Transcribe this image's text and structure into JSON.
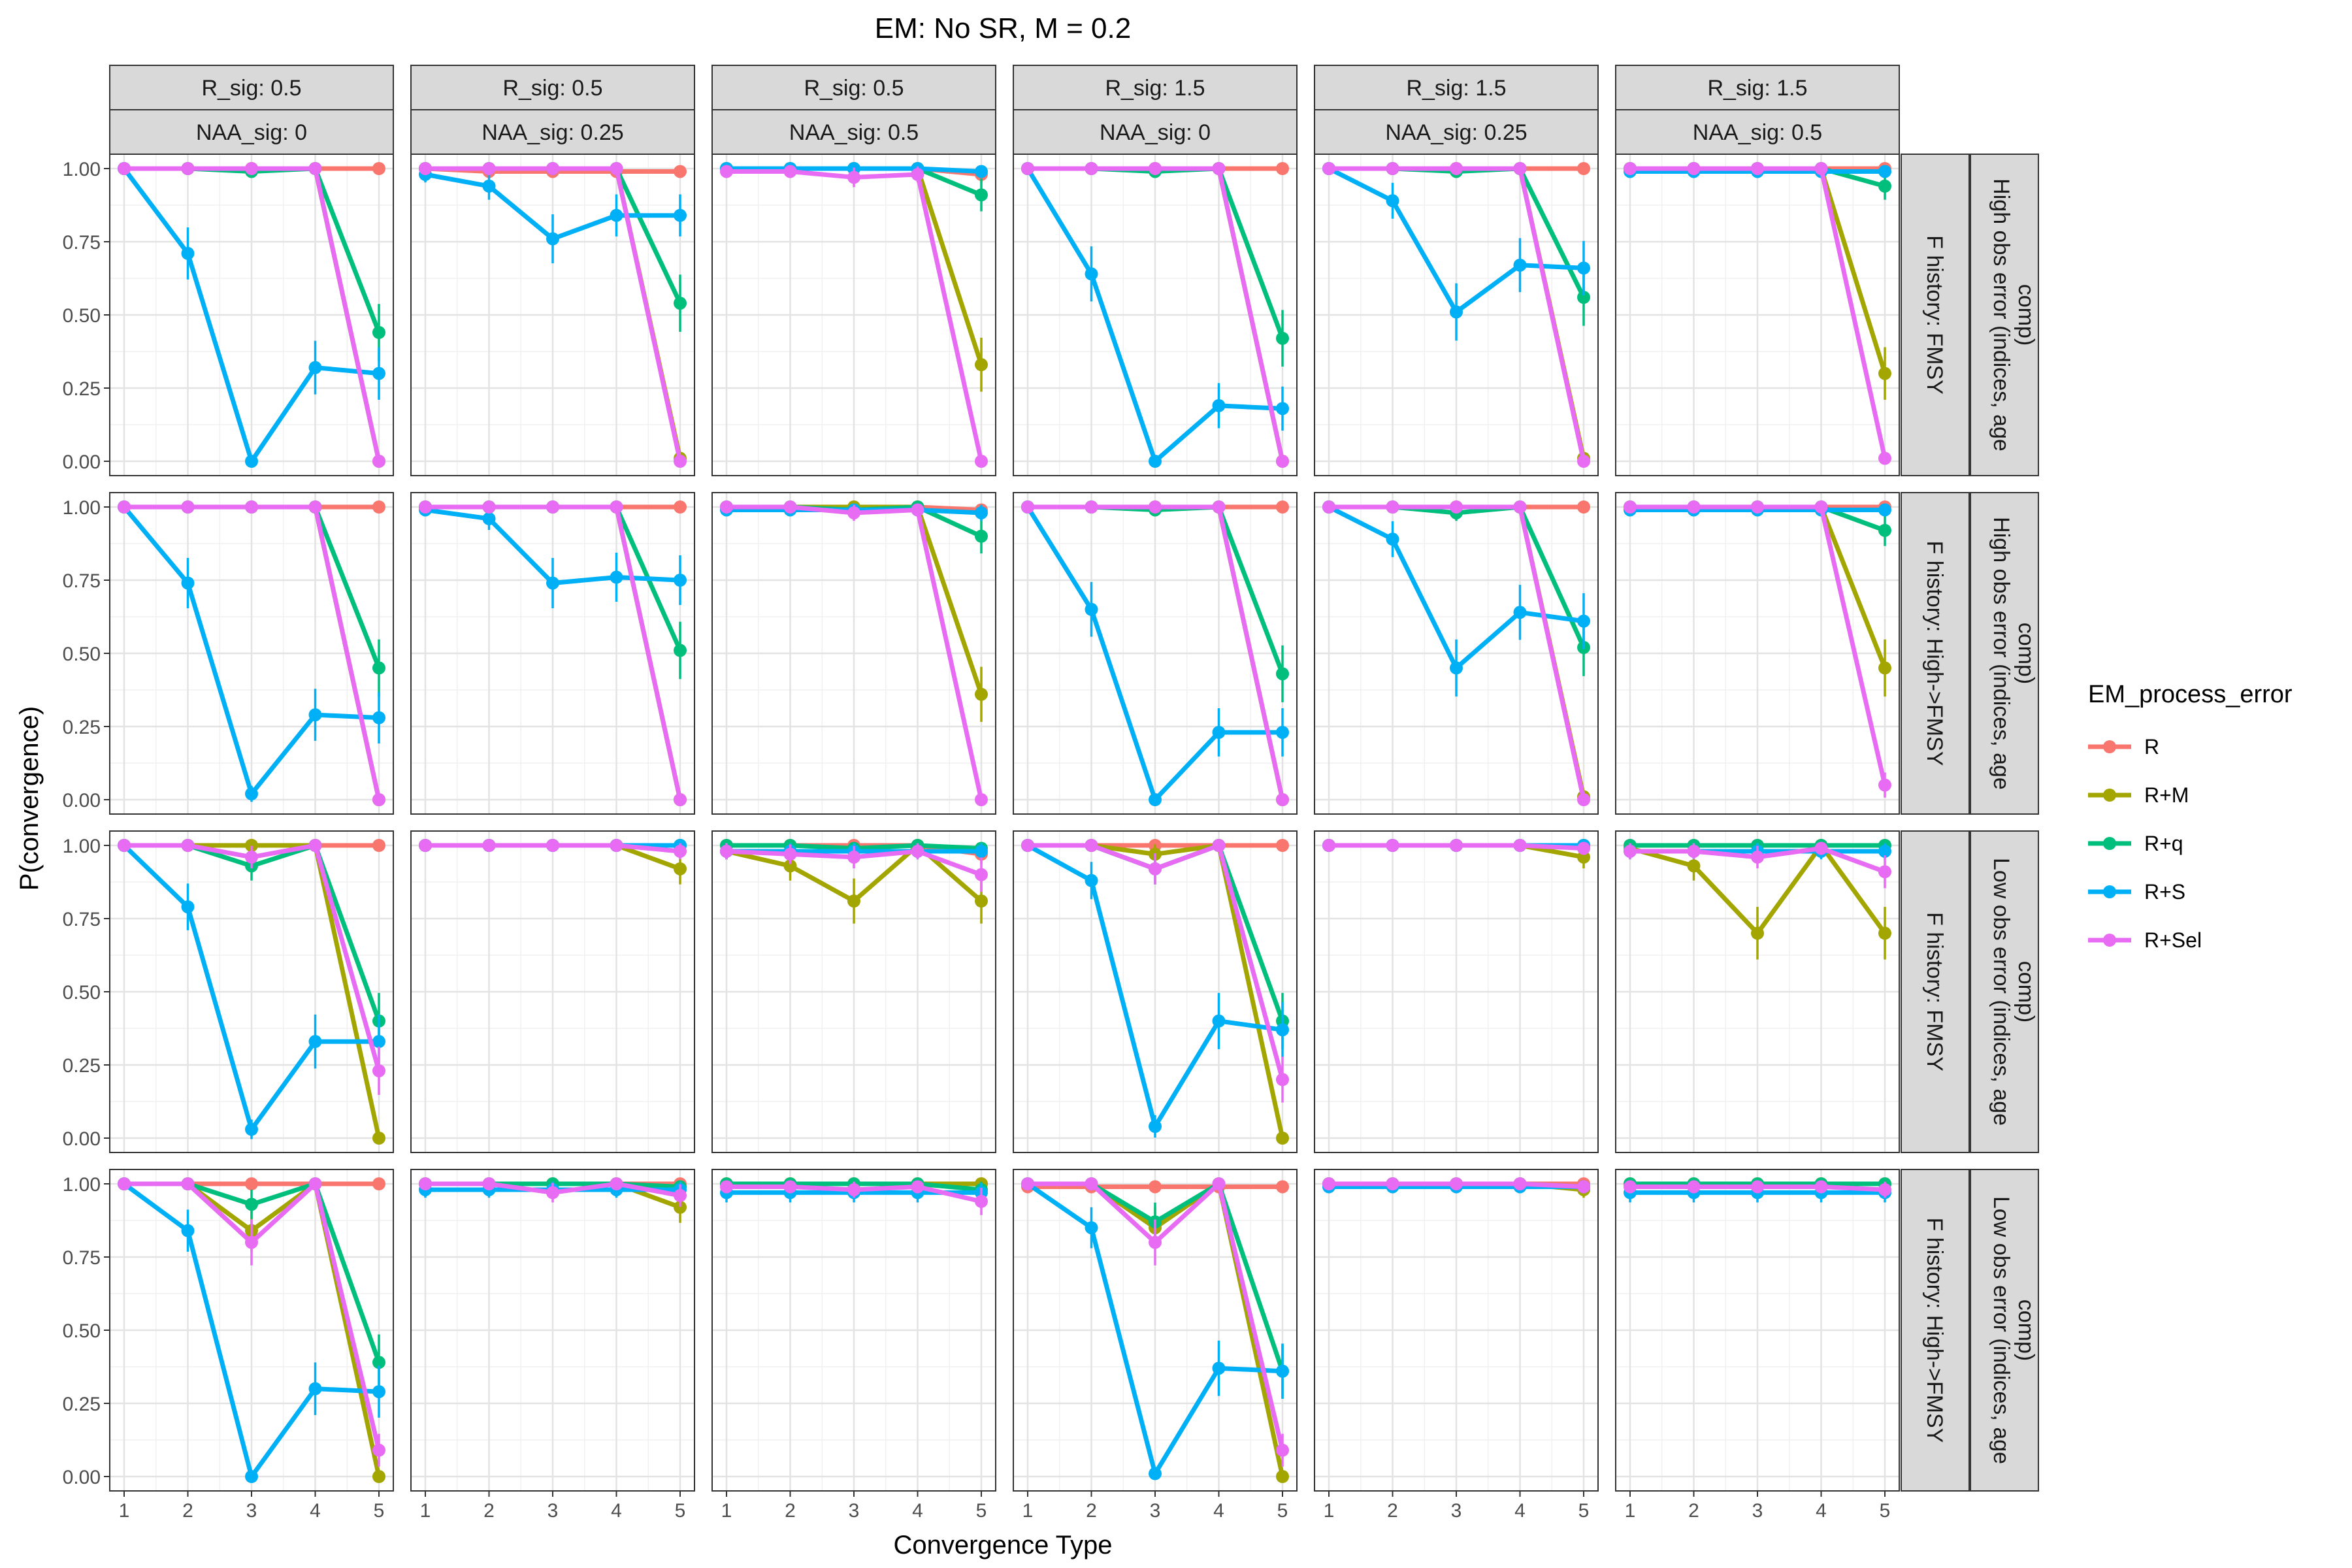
{
  "chart_data": {
    "type": "line",
    "title": "EM: No SR, M = 0.2",
    "xlabel": "Convergence Type",
    "ylabel": "P(convergence)",
    "x": [
      1,
      2,
      3,
      4,
      5
    ],
    "x_ticks": [
      "1",
      "2",
      "3",
      "4",
      "5"
    ],
    "ylim": [
      0,
      1
    ],
    "y_ticks": [
      "0.00",
      "0.25",
      "0.50",
      "0.75",
      "1.00"
    ],
    "grid": true,
    "legend": {
      "title": "EM_process_error",
      "placement": "right",
      "entries": [
        "R",
        "R+M",
        "R+q",
        "R+S",
        "R+Sel"
      ]
    },
    "colors": {
      "R": "#F8766D",
      "R+M": "#A3A500",
      "R+q": "#00BF7D",
      "R+S": "#00B0F6",
      "R+Sel": "#E76BF3"
    },
    "columns": [
      {
        "top": "R_sig: 0.5",
        "bottom": "NAA_sig: 0"
      },
      {
        "top": "R_sig: 0.5",
        "bottom": "NAA_sig: 0.25"
      },
      {
        "top": "R_sig: 0.5",
        "bottom": "NAA_sig: 0.5"
      },
      {
        "top": "R_sig: 1.5",
        "bottom": "NAA_sig: 0"
      },
      {
        "top": "R_sig: 1.5",
        "bottom": "NAA_sig: 0.25"
      },
      {
        "top": "R_sig: 1.5",
        "bottom": "NAA_sig: 0.5"
      }
    ],
    "rows": [
      {
        "inner": "F history: FMSY",
        "outer": [
          "High obs error (indices, age",
          "comp)"
        ]
      },
      {
        "inner": "F history: High->FMSY",
        "outer": [
          "High obs error (indices, age",
          "comp)"
        ]
      },
      {
        "inner": "F history: FMSY",
        "outer": [
          "Low obs error (indices, age",
          "comp)"
        ]
      },
      {
        "inner": "F history: High->FMSY",
        "outer": [
          "Low obs error (indices, age",
          "comp)"
        ]
      }
    ],
    "panels": [
      [
        {
          "R": [
            1,
            1,
            1,
            1,
            1
          ],
          "R+M": [
            1,
            1,
            1,
            1,
            0
          ],
          "R+q": [
            1,
            1,
            0.99,
            1,
            0.44
          ],
          "R+S": [
            1,
            0.71,
            0,
            0.32,
            0.3
          ],
          "R+Sel": [
            1,
            1,
            1,
            1,
            0
          ]
        },
        {
          "R": [
            1,
            0.99,
            0.99,
            0.99,
            0.99
          ],
          "R+M": [
            1,
            1,
            1,
            1,
            0.01
          ],
          "R+q": [
            1,
            1,
            1,
            1,
            0.54
          ],
          "R+S": [
            0.98,
            0.94,
            0.76,
            0.84,
            0.84
          ],
          "R+Sel": [
            1,
            1,
            1,
            1,
            0
          ]
        },
        {
          "R": [
            1,
            1,
            1,
            1,
            0.98
          ],
          "R+M": [
            1,
            1,
            1,
            1,
            0.33
          ],
          "R+q": [
            1,
            1,
            1,
            1,
            0.91
          ],
          "R+S": [
            1,
            1,
            1,
            1,
            0.99
          ],
          "R+Sel": [
            0.99,
            0.99,
            0.97,
            0.98,
            0
          ]
        },
        {
          "R": [
            1,
            1,
            1,
            1,
            1
          ],
          "R+M": [
            1,
            1,
            1,
            1,
            0
          ],
          "R+q": [
            1,
            1,
            0.99,
            1,
            0.42
          ],
          "R+S": [
            1,
            0.64,
            0,
            0.19,
            0.18
          ],
          "R+Sel": [
            1,
            1,
            1,
            1,
            0
          ]
        },
        {
          "R": [
            1,
            1,
            1,
            1,
            1
          ],
          "R+M": [
            1,
            1,
            1,
            1,
            0.01
          ],
          "R+q": [
            1,
            1,
            0.99,
            1,
            0.56
          ],
          "R+S": [
            1,
            0.89,
            0.51,
            0.67,
            0.66
          ],
          "R+Sel": [
            1,
            1,
            1,
            1,
            0
          ]
        },
        {
          "R": [
            1,
            1,
            1,
            1,
            1
          ],
          "R+M": [
            1,
            1,
            1,
            1,
            0.3
          ],
          "R+q": [
            1,
            1,
            1,
            1,
            0.94
          ],
          "R+S": [
            0.99,
            0.99,
            0.99,
            0.99,
            0.99
          ],
          "R+Sel": [
            1,
            1,
            1,
            1,
            0.01
          ]
        }
      ],
      [
        {
          "R": [
            1,
            1,
            1,
            1,
            1
          ],
          "R+M": [
            1,
            1,
            1,
            1,
            0
          ],
          "R+q": [
            1,
            1,
            1,
            1,
            0.45
          ],
          "R+S": [
            1,
            0.74,
            0.02,
            0.29,
            0.28
          ],
          "R+Sel": [
            1,
            1,
            1,
            1,
            0
          ]
        },
        {
          "R": [
            1,
            1,
            1,
            1,
            1
          ],
          "R+M": [
            1,
            1,
            1,
            1,
            0
          ],
          "R+q": [
            1,
            1,
            1,
            1,
            0.51
          ],
          "R+S": [
            0.99,
            0.96,
            0.74,
            0.76,
            0.75
          ],
          "R+Sel": [
            1,
            1,
            1,
            1,
            0
          ]
        },
        {
          "R": [
            1,
            1,
            1,
            1,
            0.99
          ],
          "R+M": [
            1,
            1,
            1,
            1,
            0.36
          ],
          "R+q": [
            1,
            1,
            0.99,
            1,
            0.9
          ],
          "R+S": [
            0.99,
            0.99,
            0.99,
            0.99,
            0.98
          ],
          "R+Sel": [
            1,
            1,
            0.98,
            0.99,
            0
          ]
        },
        {
          "R": [
            1,
            1,
            1,
            1,
            1
          ],
          "R+M": [
            1,
            1,
            1,
            1,
            0
          ],
          "R+q": [
            1,
            1,
            0.99,
            1,
            0.43
          ],
          "R+S": [
            1,
            0.65,
            0,
            0.23,
            0.23
          ],
          "R+Sel": [
            1,
            1,
            1,
            1,
            0
          ]
        },
        {
          "R": [
            1,
            1,
            1,
            1,
            1
          ],
          "R+M": [
            1,
            1,
            1,
            1,
            0.01
          ],
          "R+q": [
            1,
            1,
            0.98,
            1,
            0.52
          ],
          "R+S": [
            1,
            0.89,
            0.45,
            0.64,
            0.61
          ],
          "R+Sel": [
            1,
            1,
            1,
            1,
            0
          ]
        },
        {
          "R": [
            1,
            1,
            1,
            1,
            1
          ],
          "R+M": [
            1,
            1,
            1,
            1,
            0.45
          ],
          "R+q": [
            1,
            1,
            1,
            1,
            0.92
          ],
          "R+S": [
            0.99,
            0.99,
            0.99,
            0.99,
            0.99
          ],
          "R+Sel": [
            1,
            1,
            1,
            1,
            0.05
          ]
        }
      ],
      [
        {
          "R": [
            1,
            1,
            1,
            1,
            1
          ],
          "R+M": [
            1,
            1,
            1,
            1,
            0
          ],
          "R+q": [
            1,
            1,
            0.93,
            1,
            0.4
          ],
          "R+S": [
            1,
            0.79,
            0.03,
            0.33,
            0.33
          ],
          "R+Sel": [
            1,
            1,
            0.96,
            1,
            0.23
          ]
        },
        {
          "R": [
            1,
            1,
            1,
            1,
            1
          ],
          "R+M": [
            1,
            1,
            1,
            1,
            0.92
          ],
          "R+q": [
            1,
            1,
            1,
            1,
            1
          ],
          "R+S": [
            1,
            1,
            1,
            1,
            1
          ],
          "R+Sel": [
            1,
            1,
            1,
            1,
            0.98
          ]
        },
        {
          "R": [
            1,
            1,
            1,
            1,
            0.97
          ],
          "R+M": [
            0.98,
            0.93,
            0.81,
            1,
            0.81
          ],
          "R+q": [
            1,
            1,
            0.99,
            1,
            0.99
          ],
          "R+S": [
            0.98,
            0.98,
            0.98,
            0.98,
            0.98
          ],
          "R+Sel": [
            0.98,
            0.97,
            0.96,
            0.98,
            0.9
          ]
        },
        {
          "R": [
            1,
            1,
            1,
            1,
            1
          ],
          "R+M": [
            1,
            1,
            0.97,
            1,
            0
          ],
          "R+q": [
            1,
            1,
            0.92,
            1,
            0.4
          ],
          "R+S": [
            1,
            0.88,
            0.04,
            0.4,
            0.37
          ],
          "R+Sel": [
            1,
            1,
            0.92,
            1,
            0.2
          ]
        },
        {
          "R": [
            1,
            1,
            1,
            1,
            1
          ],
          "R+M": [
            1,
            1,
            1,
            1,
            0.96
          ],
          "R+q": [
            1,
            1,
            1,
            1,
            1
          ],
          "R+S": [
            1,
            1,
            1,
            1,
            1
          ],
          "R+Sel": [
            1,
            1,
            1,
            1,
            0.99
          ]
        },
        {
          "R": [
            1,
            1,
            1,
            1,
            1
          ],
          "R+M": [
            0.99,
            0.93,
            0.7,
            1,
            0.7
          ],
          "R+q": [
            1,
            1,
            1,
            1,
            1
          ],
          "R+S": [
            0.98,
            0.98,
            0.98,
            0.98,
            0.98
          ],
          "R+Sel": [
            0.98,
            0.98,
            0.96,
            0.99,
            0.91
          ]
        }
      ],
      [
        {
          "R": [
            1,
            1,
            1,
            1,
            1
          ],
          "R+M": [
            1,
            1,
            0.84,
            1,
            0
          ],
          "R+q": [
            1,
            1,
            0.93,
            1,
            0.39
          ],
          "R+S": [
            1,
            0.84,
            0,
            0.3,
            0.29
          ],
          "R+Sel": [
            1,
            1,
            0.8,
            1,
            0.09
          ]
        },
        {
          "R": [
            1,
            1,
            1,
            1,
            1
          ],
          "R+M": [
            1,
            1,
            1,
            1,
            0.92
          ],
          "R+q": [
            1,
            1,
            1,
            1,
            0.99
          ],
          "R+S": [
            0.98,
            0.98,
            0.98,
            0.98,
            0.98
          ],
          "R+Sel": [
            1,
            1,
            0.97,
            1,
            0.96
          ]
        },
        {
          "R": [
            1,
            1,
            1,
            1,
            1
          ],
          "R+M": [
            1,
            1,
            1,
            1,
            1
          ],
          "R+q": [
            1,
            1,
            1,
            1,
            0.98
          ],
          "R+S": [
            0.97,
            0.97,
            0.97,
            0.97,
            0.97
          ],
          "R+Sel": [
            0.99,
            0.99,
            0.98,
            0.99,
            0.94
          ]
        },
        {
          "R": [
            0.99,
            0.99,
            0.99,
            0.99,
            0.99
          ],
          "R+M": [
            1,
            1,
            0.85,
            1,
            0
          ],
          "R+q": [
            1,
            1,
            0.87,
            1,
            0.36
          ],
          "R+S": [
            1,
            0.85,
            0.01,
            0.37,
            0.36
          ],
          "R+Sel": [
            1,
            1,
            0.8,
            1,
            0.09
          ]
        },
        {
          "R": [
            1,
            1,
            1,
            1,
            1
          ],
          "R+M": [
            1,
            1,
            1,
            1,
            0.98
          ],
          "R+q": [
            1,
            1,
            1,
            1,
            0.99
          ],
          "R+S": [
            0.99,
            0.99,
            0.99,
            0.99,
            0.99
          ],
          "R+Sel": [
            1,
            1,
            1,
            1,
            0.99
          ]
        },
        {
          "R": [
            1,
            1,
            1,
            1,
            1
          ],
          "R+M": [
            1,
            1,
            1,
            1,
            1
          ],
          "R+q": [
            1,
            1,
            1,
            1,
            1
          ],
          "R+S": [
            0.97,
            0.97,
            0.97,
            0.97,
            0.97
          ],
          "R+Sel": [
            0.99,
            0.99,
            0.99,
            0.99,
            0.98
          ]
        }
      ]
    ]
  }
}
